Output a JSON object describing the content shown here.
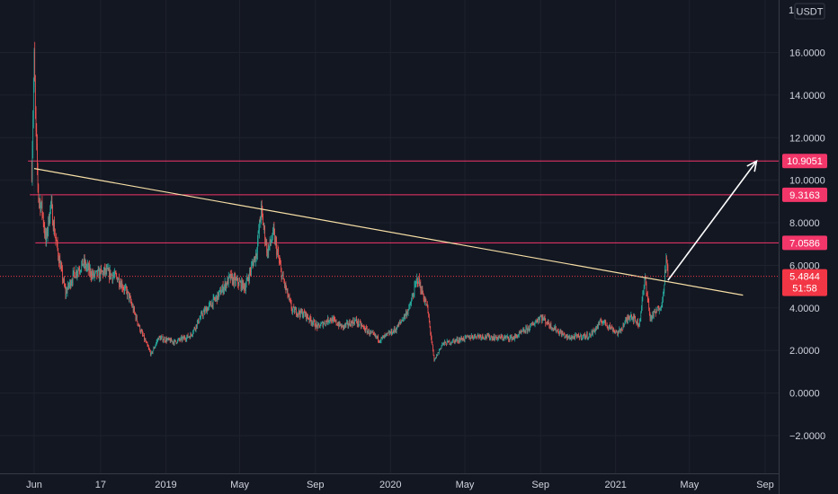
{
  "chart_data": {
    "type": "candlestick",
    "title": "",
    "xlabel": "",
    "ylabel": "",
    "quote_currency": "USDT",
    "ylim": [
      -3.2,
      17.0
    ],
    "y_ticks": [
      "16.0000",
      "14.0000",
      "12.0000",
      "10.0000",
      "8.0000",
      "6.0000",
      "4.0000",
      "2.0000",
      "0.0000",
      "−2.0000"
    ],
    "y_tick_values": [
      16,
      14,
      12,
      10,
      8,
      6,
      4,
      2,
      0,
      -2
    ],
    "x_ticks": [
      "Jun",
      "17",
      "2019",
      "May",
      "Sep",
      "2020",
      "May",
      "Sep",
      "2021",
      "May",
      "Sep"
    ],
    "x_tick_dates": [
      "2018-06-01",
      "2018-09-17",
      "2019-01-01",
      "2019-05-01",
      "2019-09-01",
      "2020-01-01",
      "2020-05-01",
      "2020-09-01",
      "2021-01-01",
      "2021-05-01",
      "2021-09-01"
    ],
    "top_edge_label": "1",
    "price_path": [
      [
        "2018-05-28",
        10.5
      ],
      [
        "2018-06-01",
        15.6
      ],
      [
        "2018-06-04",
        12.0
      ],
      [
        "2018-06-08",
        9.2
      ],
      [
        "2018-06-14",
        8.6
      ],
      [
        "2018-06-20",
        7.1
      ],
      [
        "2018-06-28",
        8.9
      ],
      [
        "2018-07-05",
        7.4
      ],
      [
        "2018-07-12",
        6.2
      ],
      [
        "2018-07-22",
        4.7
      ],
      [
        "2018-08-05",
        5.6
      ],
      [
        "2018-08-20",
        6.1
      ],
      [
        "2018-09-05",
        5.5
      ],
      [
        "2018-09-25",
        5.7
      ],
      [
        "2018-10-15",
        5.4
      ],
      [
        "2018-11-01",
        4.6
      ],
      [
        "2018-11-20",
        3.0
      ],
      [
        "2018-12-08",
        1.8
      ],
      [
        "2018-12-20",
        2.6
      ],
      [
        "2019-01-15",
        2.4
      ],
      [
        "2019-02-10",
        2.7
      ],
      [
        "2019-03-01",
        3.7
      ],
      [
        "2019-03-25",
        4.5
      ],
      [
        "2019-04-15",
        5.4
      ],
      [
        "2019-05-10",
        5.0
      ],
      [
        "2019-05-28",
        6.6
      ],
      [
        "2019-06-05",
        8.6
      ],
      [
        "2019-06-15",
        6.6
      ],
      [
        "2019-06-25",
        7.5
      ],
      [
        "2019-07-08",
        5.6
      ],
      [
        "2019-07-25",
        3.9
      ],
      [
        "2019-08-15",
        3.7
      ],
      [
        "2019-09-05",
        3.1
      ],
      [
        "2019-09-25",
        3.5
      ],
      [
        "2019-10-15",
        3.1
      ],
      [
        "2019-11-05",
        3.4
      ],
      [
        "2019-11-25",
        2.9
      ],
      [
        "2019-12-15",
        2.5
      ],
      [
        "2020-01-10",
        3.0
      ],
      [
        "2020-02-01",
        4.0
      ],
      [
        "2020-02-14",
        5.4
      ],
      [
        "2020-03-01",
        4.0
      ],
      [
        "2020-03-12",
        1.5
      ],
      [
        "2020-03-25",
        2.3
      ],
      [
        "2020-04-20",
        2.5
      ],
      [
        "2020-05-20",
        2.7
      ],
      [
        "2020-06-20",
        2.6
      ],
      [
        "2020-07-20",
        2.6
      ],
      [
        "2020-08-15",
        3.1
      ],
      [
        "2020-09-01",
        3.6
      ],
      [
        "2020-09-20",
        3.1
      ],
      [
        "2020-10-15",
        2.6
      ],
      [
        "2020-11-20",
        2.7
      ],
      [
        "2020-12-10",
        3.4
      ],
      [
        "2021-01-05",
        2.8
      ],
      [
        "2021-01-25",
        3.7
      ],
      [
        "2021-02-08",
        3.2
      ],
      [
        "2021-02-18",
        5.4
      ],
      [
        "2021-02-26",
        3.5
      ],
      [
        "2021-03-10",
        3.9
      ],
      [
        "2021-03-18",
        4.3
      ],
      [
        "2021-03-24",
        6.3
      ],
      [
        "2021-03-27",
        5.48
      ]
    ],
    "annotations": {
      "horizontal_levels": [
        {
          "value": 10.9051,
          "label": "10.9051",
          "from": "2018-05-22",
          "color": "#f23669"
        },
        {
          "value": 9.3163,
          "label": "9.3163",
          "from": "2018-05-25",
          "color": "#f23669"
        },
        {
          "value": 7.0586,
          "label": "7.0586",
          "from": "2018-06-03",
          "color": "#f23669"
        }
      ],
      "trendline": {
        "from": [
          "2018-06-01",
          10.55
        ],
        "to": [
          "2021-07-27",
          4.6
        ],
        "color": "#f7dfa6"
      },
      "arrow": {
        "from": [
          "2021-03-27",
          5.3
        ],
        "to": [
          "2021-08-18",
          10.9
        ],
        "color": "#ffffff"
      },
      "last_price": {
        "value": 5.4844,
        "label": "5.4844",
        "countdown": "51:58",
        "color": "#f23645"
      }
    }
  }
}
